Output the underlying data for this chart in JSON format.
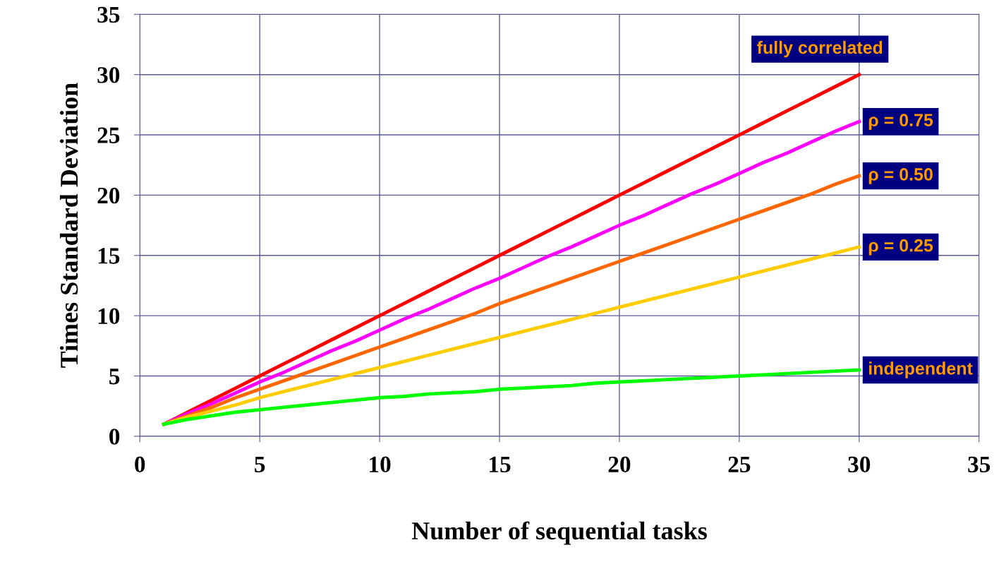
{
  "chart_data": {
    "type": "line",
    "xlabel": "Number of sequential tasks",
    "ylabel": "Times Standard Deviation",
    "x": [
      1,
      2,
      3,
      4,
      5,
      6,
      7,
      8,
      9,
      10,
      11,
      12,
      13,
      14,
      15,
      16,
      17,
      18,
      19,
      20,
      21,
      22,
      23,
      24,
      25,
      26,
      27,
      28,
      29,
      30
    ],
    "series": [
      {
        "name": "fully correlated",
        "color": "#ff0000",
        "values": [
          1,
          2,
          3,
          4,
          5,
          6,
          7,
          8,
          9,
          10,
          11,
          12,
          13,
          14,
          15,
          16,
          17,
          18,
          19,
          20,
          21,
          22,
          23,
          24,
          25,
          26,
          27,
          28,
          29,
          30
        ]
      },
      {
        "name": "ρ = 0.75",
        "color": "#ff00ff",
        "values": [
          1,
          1.9,
          2.7,
          3.6,
          4.5,
          5.3,
          6.2,
          7.1,
          7.9,
          8.8,
          9.7,
          10.5,
          11.4,
          12.3,
          13.1,
          14,
          14.9,
          15.7,
          16.6,
          17.5,
          18.3,
          19.2,
          20.1,
          20.9,
          21.8,
          22.7,
          23.5,
          24.4,
          25.3,
          26.1
        ]
      },
      {
        "name": "ρ = 0.50",
        "color": "#ff6600",
        "values": [
          1,
          1.7,
          2.4,
          3.2,
          3.9,
          4.6,
          5.3,
          6,
          6.7,
          7.4,
          8.1,
          8.8,
          9.5,
          10.2,
          11,
          11.7,
          12.4,
          13.1,
          13.8,
          14.5,
          15.2,
          15.9,
          16.6,
          17.3,
          18,
          18.7,
          19.4,
          20.1,
          20.9,
          21.6
        ]
      },
      {
        "name": "ρ = 0.25",
        "color": "#ffcc00",
        "values": [
          1,
          1.6,
          2.1,
          2.6,
          3.2,
          3.7,
          4.2,
          4.7,
          5.2,
          5.7,
          6.2,
          6.7,
          7.2,
          7.7,
          8.2,
          8.7,
          9.2,
          9.7,
          10.2,
          10.7,
          11.2,
          11.7,
          12.2,
          12.7,
          13.2,
          13.7,
          14.2,
          14.7,
          15.2,
          15.7
        ]
      },
      {
        "name": "independent",
        "color": "#00ff00",
        "values": [
          1,
          1.4,
          1.7,
          2,
          2.2,
          2.4,
          2.6,
          2.8,
          3,
          3.2,
          3.3,
          3.5,
          3.6,
          3.7,
          3.9,
          4,
          4.1,
          4.2,
          4.4,
          4.5,
          4.6,
          4.7,
          4.8,
          4.9,
          5,
          5.1,
          5.2,
          5.3,
          5.4,
          5.5
        ]
      }
    ],
    "xlim": [
      0,
      35
    ],
    "xticks": [
      0,
      5,
      10,
      15,
      20,
      25,
      30,
      35
    ],
    "ylim": [
      0,
      35
    ],
    "yticks": [
      0,
      5,
      10,
      15,
      20,
      25,
      30,
      35
    ],
    "grid": true,
    "legend": false,
    "marker": "none",
    "line_style": "solid"
  }
}
